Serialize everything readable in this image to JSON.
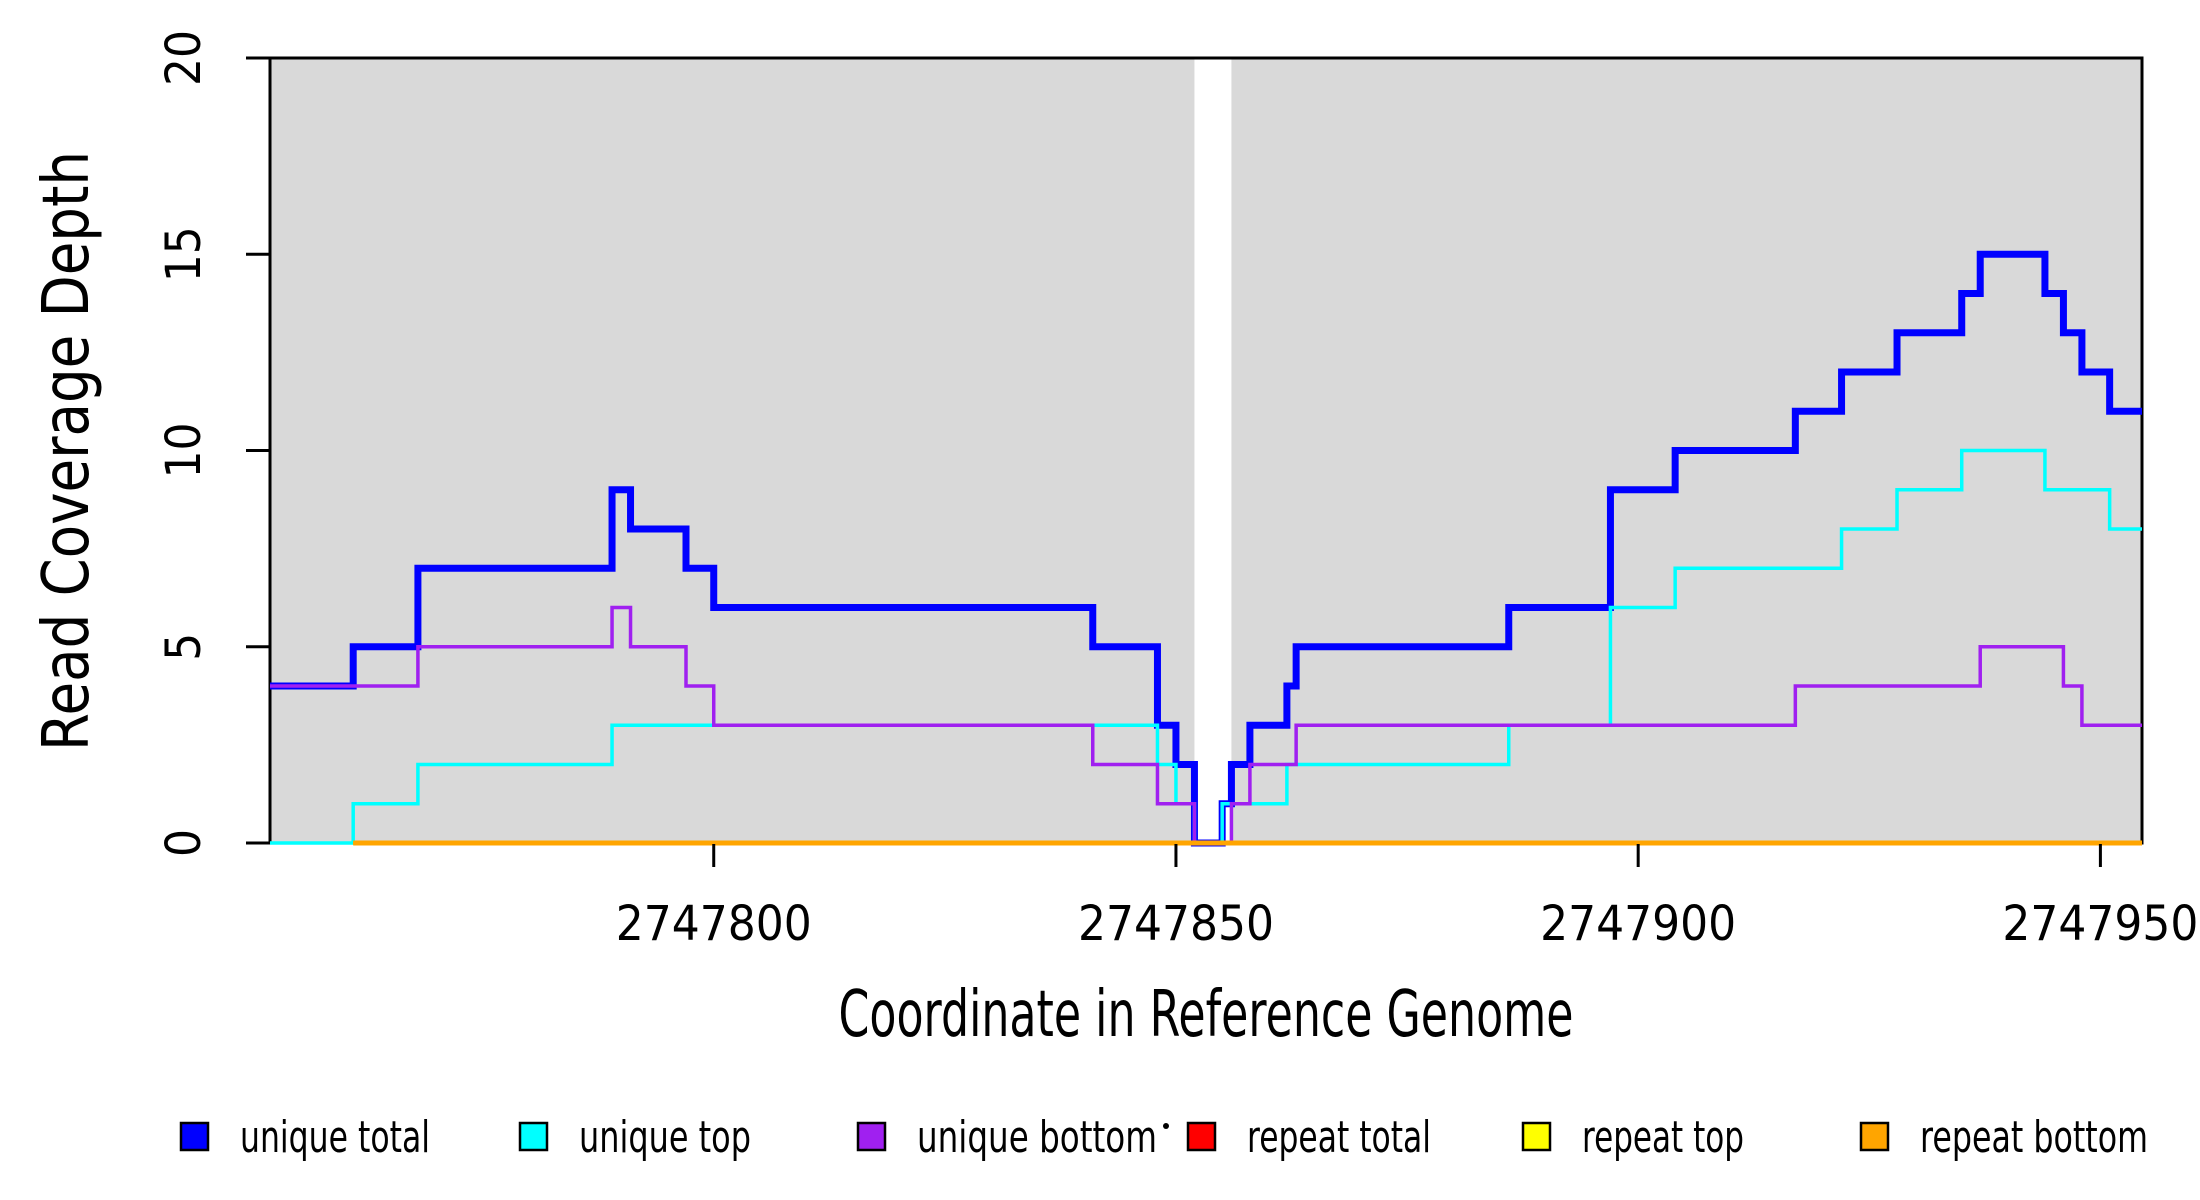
{
  "figure": {
    "kind": "read coverage step plot",
    "background_color": "#FFFFFF"
  },
  "legend": {
    "items": [
      {
        "label": "unique total",
        "color": "#0000FF"
      },
      {
        "label": "unique top",
        "color": "#00FFFF"
      },
      {
        "label": "unique bottom",
        "color": "#A020F0"
      },
      {
        "label": "repeat total",
        "color": "#FF0000"
      },
      {
        "label": "repeat top",
        "color": "#FFFF00"
      },
      {
        "label": "repeat bottom",
        "color": "#FFA500"
      }
    ]
  },
  "chart_data": {
    "type": "line",
    "step": true,
    "title": "",
    "xlabel": "Coordinate in Reference Genome",
    "ylabel": "Read Coverage Depth",
    "xlim": [
      2747752,
      2747954.5
    ],
    "ylim": [
      0,
      20
    ],
    "xticks": [
      2747800,
      2747850,
      2747900,
      2747950
    ],
    "yticks": [
      0,
      5,
      10,
      15,
      20
    ],
    "grid": false,
    "legend_position": "bottom",
    "plot_background": {
      "color": "#D9D9D9",
      "bands": [
        [
          2747752,
          2747852
        ],
        [
          2747856,
          2747954.5
        ]
      ],
      "gap_note": "white vertical band where total coverage is zero (2747852-2747856)"
    },
    "axis_color": "#000000",
    "series": [
      {
        "name": "unique total",
        "color": "#0000FF",
        "line_width": 7,
        "steps": [
          [
            2747752,
            4
          ],
          [
            2747761,
            5
          ],
          [
            2747768,
            7
          ],
          [
            2747789,
            9
          ],
          [
            2747791,
            8
          ],
          [
            2747797,
            7
          ],
          [
            2747800,
            6
          ],
          [
            2747841,
            5
          ],
          [
            2747848,
            3
          ],
          [
            2747850,
            2
          ],
          [
            2747852,
            0
          ],
          [
            2747855,
            1
          ],
          [
            2747856,
            2
          ],
          [
            2747858,
            3
          ],
          [
            2747862,
            4
          ],
          [
            2747863,
            5
          ],
          [
            2747886,
            6
          ],
          [
            2747897,
            9
          ],
          [
            2747904,
            10
          ],
          [
            2747917,
            11
          ],
          [
            2747922,
            12
          ],
          [
            2747928,
            13
          ],
          [
            2747935,
            14
          ],
          [
            2747937,
            15
          ],
          [
            2747944,
            14
          ],
          [
            2747946,
            13
          ],
          [
            2747948,
            12
          ],
          [
            2747951,
            11
          ],
          [
            2747954.5,
            11
          ]
        ]
      },
      {
        "name": "unique top",
        "color": "#00FFFF",
        "line_width": 3.5,
        "steps": [
          [
            2747752,
            0
          ],
          [
            2747761,
            1
          ],
          [
            2747768,
            2
          ],
          [
            2747789,
            3
          ],
          [
            2747848,
            2
          ],
          [
            2747850,
            1
          ],
          [
            2747852,
            0
          ],
          [
            2747855,
            1
          ],
          [
            2747862,
            2
          ],
          [
            2747886,
            3
          ],
          [
            2747897,
            6
          ],
          [
            2747904,
            7
          ],
          [
            2747922,
            8
          ],
          [
            2747928,
            9
          ],
          [
            2747935,
            10
          ],
          [
            2747944,
            9
          ],
          [
            2747951,
            8
          ],
          [
            2747954.5,
            8
          ]
        ]
      },
      {
        "name": "unique bottom",
        "color": "#A020F0",
        "line_width": 3.5,
        "steps": [
          [
            2747752,
            4
          ],
          [
            2747768,
            5
          ],
          [
            2747789,
            6
          ],
          [
            2747791,
            5
          ],
          [
            2747797,
            4
          ],
          [
            2747800,
            3
          ],
          [
            2747841,
            2
          ],
          [
            2747848,
            1
          ],
          [
            2747852,
            0
          ],
          [
            2747856,
            1
          ],
          [
            2747858,
            2
          ],
          [
            2747863,
            3
          ],
          [
            2747917,
            4
          ],
          [
            2747937,
            5
          ],
          [
            2747946,
            4
          ],
          [
            2747948,
            3
          ],
          [
            2747954.5,
            3
          ]
        ]
      },
      {
        "name": "repeat total",
        "color": "#FF0000",
        "line_width": 3.5,
        "steps": [
          [
            2747761,
            0
          ],
          [
            2747954.5,
            0
          ]
        ]
      },
      {
        "name": "repeat top",
        "color": "#FFFF00",
        "line_width": 3.5,
        "steps": [
          [
            2747761,
            0
          ],
          [
            2747954.5,
            0
          ]
        ]
      },
      {
        "name": "repeat bottom",
        "color": "#FFA500",
        "line_width": 5,
        "steps": [
          [
            2747761,
            0
          ],
          [
            2747954.5,
            0
          ]
        ]
      }
    ]
  }
}
